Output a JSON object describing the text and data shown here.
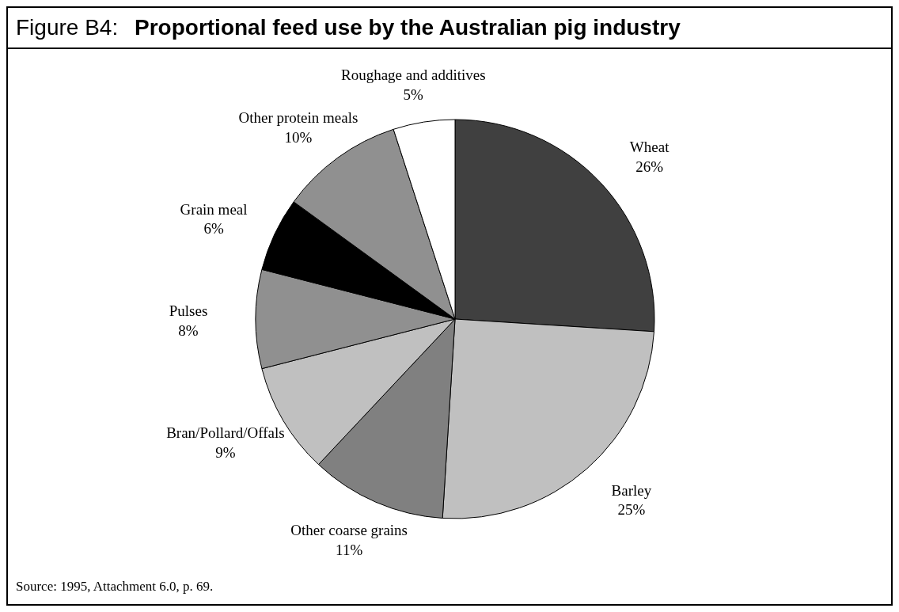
{
  "chart_data": {
    "type": "pie",
    "title": "Proportional feed use by the Australian pig industry",
    "annotations": [
      "Figure B4:",
      "Source: 1995, Attachment 6.0, p. 69."
    ],
    "categories": [
      "Wheat",
      "Barley",
      "Other coarse grains",
      "Bran/Pollard/Offals",
      "Pulses",
      "Grain meal",
      "Other protein meals",
      "Roughage and additives"
    ],
    "values": [
      26,
      25,
      11,
      9,
      8,
      6,
      10,
      5
    ],
    "value_labels": [
      "26%",
      "25%",
      "11%",
      "9%",
      "8%",
      "6%",
      "10%",
      "5%"
    ],
    "colors": [
      "#404040",
      "#c0c0c0",
      "#808080",
      "#c0c0c0",
      "#909090",
      "#000000",
      "#909090",
      "#ffffff"
    ]
  }
}
